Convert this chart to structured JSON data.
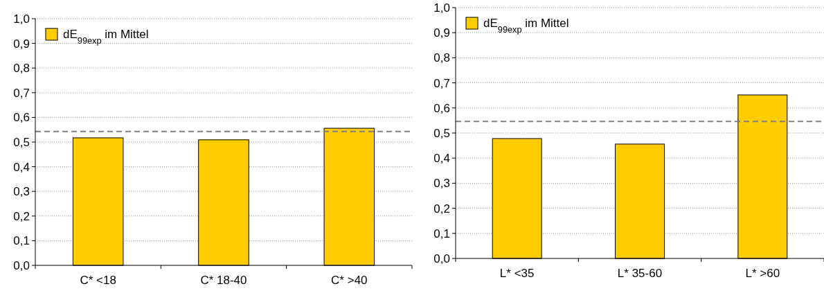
{
  "chart_data": [
    {
      "type": "bar",
      "categories": [
        "C* <18",
        "C* 18-40",
        "C* >40"
      ],
      "series": [
        {
          "name": "dE$_{99exp}$ im Mittel",
          "color": "#ffcc00",
          "values": [
            0.517,
            0.509,
            0.556
          ]
        }
      ],
      "ylim": [
        0,
        1
      ],
      "yticks": [
        {
          "value": 0,
          "label": "0,0"
        },
        {
          "value": 0.1,
          "label": "0,1"
        },
        {
          "value": 0.2,
          "label": "0,2"
        },
        {
          "value": 0.3,
          "label": "0,3"
        },
        {
          "value": 0.4,
          "label": "0,4"
        },
        {
          "value": 0.5,
          "label": "0,5"
        },
        {
          "value": 0.6,
          "label": "0,6"
        },
        {
          "value": 0.7,
          "label": "0,7"
        },
        {
          "value": 0.8,
          "label": "0,8"
        },
        {
          "value": 0.9,
          "label": "0,9"
        },
        {
          "value": 1,
          "label": "1,0"
        }
      ],
      "grid": "y",
      "legend": "top left",
      "ref_lines": [
        {
          "axis": "y",
          "value": 0.543,
          "color": "#808080",
          "line_style": "dashed"
        }
      ]
    },
    {
      "type": "bar",
      "categories": [
        "L* <35",
        "L* 35-60",
        "L* >60"
      ],
      "series": [
        {
          "name": "dE$_{99exp}$ im Mittel",
          "color": "#ffcc00",
          "values": [
            0.478,
            0.456,
            0.652
          ]
        }
      ],
      "ylim": [
        0,
        1
      ],
      "yticks": [
        {
          "value": 0,
          "label": "0,0"
        },
        {
          "value": 0.1,
          "label": "0,1"
        },
        {
          "value": 0.2,
          "label": "0,2"
        },
        {
          "value": 0.3,
          "label": "0,3"
        },
        {
          "value": 0.4,
          "label": "0,4"
        },
        {
          "value": 0.5,
          "label": "0,5"
        },
        {
          "value": 0.6,
          "label": "0,6"
        },
        {
          "value": 0.7,
          "label": "0,7"
        },
        {
          "value": 0.8,
          "label": "0,8"
        },
        {
          "value": 0.9,
          "label": "0,9"
        },
        {
          "value": 1,
          "label": "1,0"
        }
      ],
      "grid": "y",
      "legend": "top left",
      "ref_lines": [
        {
          "axis": "y",
          "value": 0.546,
          "color": "#808080",
          "line_style": "dashed"
        }
      ]
    }
  ]
}
